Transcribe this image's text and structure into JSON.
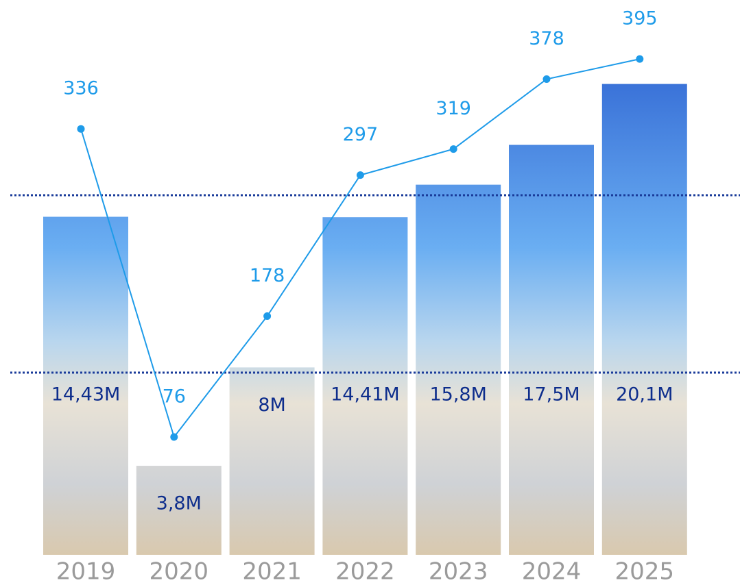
{
  "chart_data": {
    "type": "bar",
    "categories": [
      "2019",
      "2020",
      "2021",
      "2022",
      "2023",
      "2024",
      "2025"
    ],
    "series": [
      {
        "type": "bar",
        "color": "#5ea8f0",
        "values": [
          14.43,
          3.8,
          8,
          14.41,
          15.8,
          17.5,
          20.1
        ],
        "value_labels": [
          "14,43M",
          "3,8M",
          "8M",
          "14,41M",
          "15,8M",
          "17,5M",
          "20,1M"
        ],
        "label_color": "#0d2d8c"
      },
      {
        "type": "line",
        "color": "#1e9be9",
        "values": [
          336,
          76,
          178,
          297,
          319,
          378,
          395
        ]
      }
    ]
  }
}
